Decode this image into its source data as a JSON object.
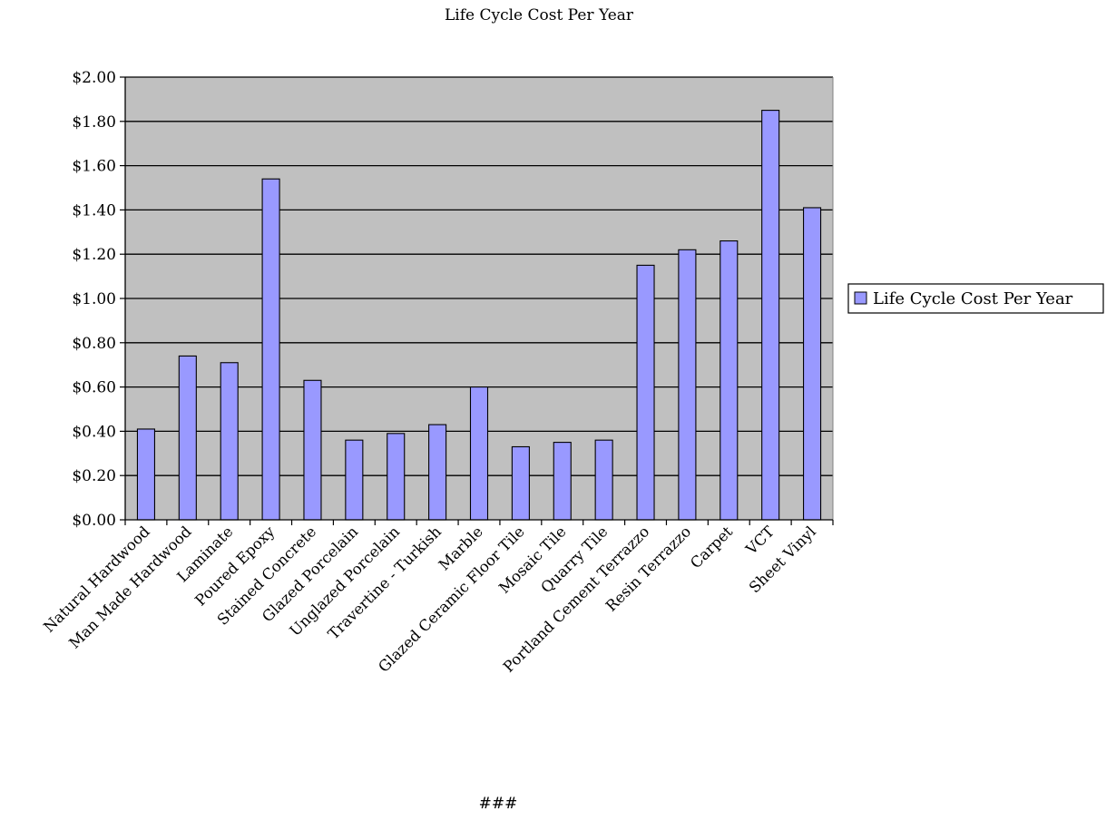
{
  "chart_data": {
    "type": "bar",
    "title": "Life Cycle Cost Per Year",
    "categories": [
      "Natural Hardwood",
      "Man Made Hardwood",
      "Laminate",
      "Poured Epoxy",
      "Stained Concrete",
      "Glazed Porcelain",
      "Unglazed Porcelain",
      "Travertine - Turkish",
      "Marble",
      "Glazed Ceramic Floor Tile",
      "Mosaic Tile",
      "Quarry Tile",
      "Portland Cement Terrazzo",
      "Resin Terrazzo",
      "Carpet",
      "VCT",
      "Sheet Vinyl"
    ],
    "series": [
      {
        "name": "Life Cycle Cost Per Year",
        "color": "#9999ff",
        "values": [
          0.41,
          0.74,
          0.71,
          1.54,
          0.63,
          0.36,
          0.39,
          0.43,
          0.6,
          0.33,
          0.35,
          0.36,
          1.15,
          1.22,
          1.26,
          1.85,
          1.41
        ]
      }
    ],
    "ylim": [
      0,
      2.0
    ],
    "yticks": [
      "$0.00",
      "$0.20",
      "$0.40",
      "$0.60",
      "$0.80",
      "$1.00",
      "$1.20",
      "$1.40",
      "$1.60",
      "$1.80",
      "$2.00"
    ],
    "ytick_values": [
      0,
      0.2,
      0.4,
      0.6,
      0.8,
      1.0,
      1.2,
      1.4,
      1.6,
      1.8,
      2.0
    ],
    "xlabel": "",
    "ylabel": "",
    "grid": true,
    "plot_background": "#c0c0c0",
    "legend_position": "right"
  },
  "footer": {
    "text": "###"
  }
}
